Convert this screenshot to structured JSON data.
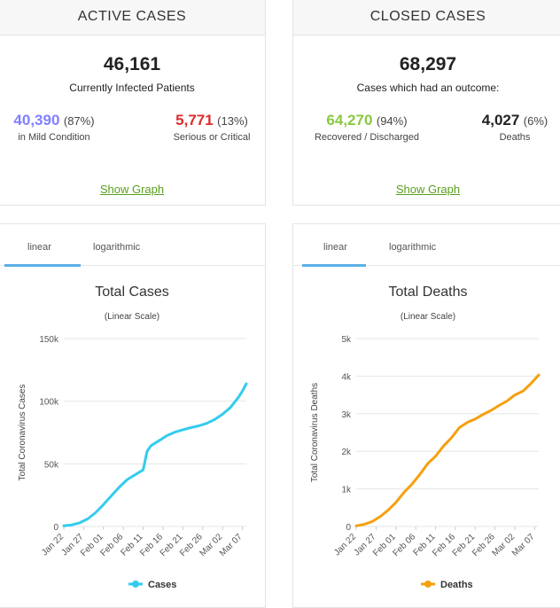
{
  "active": {
    "header": "ACTIVE CASES",
    "total": "46,161",
    "total_label": "Currently Infected Patients",
    "mild_value": "40,390",
    "mild_pct": "(87%)",
    "mild_label": "in Mild Condition",
    "serious_value": "5,771",
    "serious_pct": "(13%)",
    "serious_label": "Serious or Critical",
    "show_graph": "Show Graph"
  },
  "closed": {
    "header": "CLOSED CASES",
    "total": "68,297",
    "total_label": "Cases which had an outcome:",
    "recovered_value": "64,270",
    "recovered_pct": "(94%)",
    "recovered_label": "Recovered / Discharged",
    "deaths_value": "4,027",
    "deaths_pct": "(6%)",
    "deaths_label": "Deaths",
    "show_graph": "Show Graph"
  },
  "colors": {
    "mild": "#8080ff",
    "serious": "#dd2b2b",
    "recovered": "#8ac841",
    "cases_line": "#33ccee",
    "deaths_line": "#f5a010",
    "link": "#5a9e1e"
  },
  "cases_chart": {
    "tab_linear": "linear",
    "tab_log": "logarithmic",
    "title": "Total Cases",
    "subtitle": "(Linear Scale)",
    "ylabel": "Total Coronavirus Cases",
    "legend": "Cases"
  },
  "deaths_chart": {
    "tab_linear": "linear",
    "tab_log": "logarithmic",
    "title": "Total Deaths",
    "subtitle": "(Linear Scale)",
    "ylabel": "Total Coronavirus Deaths",
    "legend": "Deaths"
  },
  "chart_data": [
    {
      "type": "line",
      "title": "Total Cases",
      "subtitle": "(Linear Scale)",
      "ylabel": "Total Coronavirus Cases",
      "xlabel": "",
      "x_ticks": [
        "Jan 22",
        "Jan 27",
        "Feb 01",
        "Feb 06",
        "Feb 11",
        "Feb 16",
        "Feb 21",
        "Feb 26",
        "Mar 02",
        "Mar 07"
      ],
      "y_ticks": [
        "0",
        "50k",
        "100k",
        "150k"
      ],
      "ylim": [
        0,
        150000
      ],
      "series": [
        {
          "name": "Cases",
          "x": [
            0,
            2,
            4,
            6,
            8,
            10,
            12,
            14,
            16,
            20,
            21,
            22,
            24,
            26,
            28,
            30,
            32,
            34,
            36,
            38,
            40,
            42,
            44,
            45,
            46
          ],
          "values": [
            580,
            1300,
            2900,
            6000,
            11000,
            17500,
            24500,
            31500,
            37500,
            45200,
            60000,
            64500,
            68500,
            72500,
            75300,
            77200,
            78900,
            80300,
            82300,
            85300,
            89600,
            95000,
            103000,
            108000,
            114000
          ]
        }
      ],
      "grid": true,
      "legend_position": "bottom"
    },
    {
      "type": "line",
      "title": "Total Deaths",
      "subtitle": "(Linear Scale)",
      "ylabel": "Total Coronavirus Deaths",
      "xlabel": "",
      "x_ticks": [
        "Jan 22",
        "Jan 27",
        "Feb 01",
        "Feb 06",
        "Feb 11",
        "Feb 16",
        "Feb 21",
        "Feb 26",
        "Mar 02",
        "Mar 07"
      ],
      "y_ticks": [
        "0",
        "1k",
        "2k",
        "3k",
        "4k",
        "5k"
      ],
      "ylim": [
        0,
        5000
      ],
      "series": [
        {
          "name": "Deaths",
          "x": [
            0,
            2,
            4,
            6,
            8,
            10,
            12,
            14,
            16,
            18,
            20,
            22,
            24,
            26,
            28,
            30,
            32,
            34,
            36,
            38,
            40,
            42,
            44,
            46
          ],
          "values": [
            17,
            56,
            130,
            260,
            430,
            640,
            900,
            1120,
            1380,
            1670,
            1870,
            2140,
            2360,
            2630,
            2770,
            2860,
            2980,
            3090,
            3220,
            3340,
            3500,
            3600,
            3800,
            4030
          ]
        }
      ],
      "grid": true,
      "legend_position": "bottom"
    }
  ]
}
